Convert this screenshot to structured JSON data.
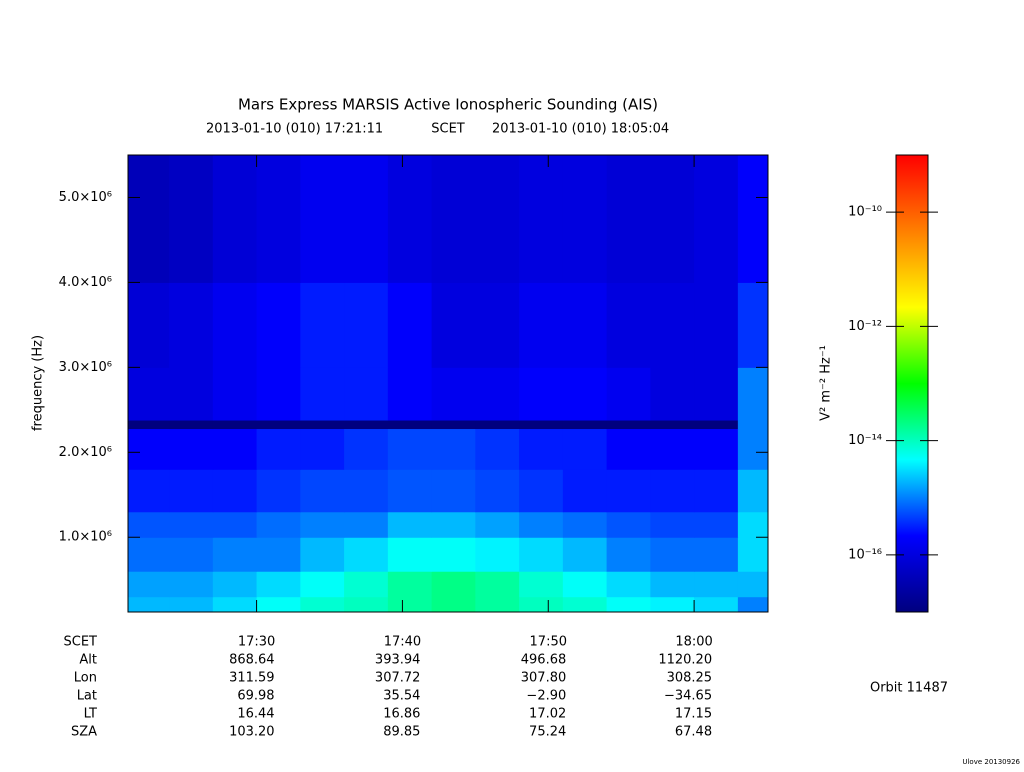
{
  "chart_data": {
    "type": "spectrogram",
    "title": "Mars Express MARSIS Active Ionospheric Sounding (AIS)",
    "start_time": "2013-01-10 (010) 17:21:11",
    "time_system": "SCET",
    "end_time": "2013-01-10 (010) 18:05:04",
    "y_label": "frequency (Hz)",
    "colorbar_label": "V² m⁻² Hz⁻¹",
    "orbit": "Orbit 11487",
    "footer": "Ulove 20130926",
    "xlim": [
      "17:21:11",
      "18:05:04"
    ],
    "xticks": [
      {
        "value": "17:30:00",
        "label": "17:30"
      },
      {
        "value": "17:40:00",
        "label": "17:40"
      },
      {
        "value": "17:50:00",
        "label": "17:50"
      },
      {
        "value": "18:00:00",
        "label": "18:00"
      }
    ],
    "ylim": [
      120000,
      5500000
    ],
    "yticks": [
      {
        "value": 1000000,
        "label": "1.0×10⁶"
      },
      {
        "value": 2000000,
        "label": "2.0×10⁶"
      },
      {
        "value": 3000000,
        "label": "3.0×10⁶"
      },
      {
        "value": 4000000,
        "label": "4.0×10⁶"
      },
      {
        "value": 5000000,
        "label": "5.0×10⁶"
      }
    ],
    "zlim": [
      1e-17,
      1e-09
    ],
    "zscale": "log",
    "zticks": [
      {
        "value": 1e-16,
        "label": "10⁻¹⁶"
      },
      {
        "value": 1e-14,
        "label": "10⁻¹⁴"
      },
      {
        "value": 1e-12,
        "label": "10⁻¹²"
      },
      {
        "value": 1e-10,
        "label": "10⁻¹⁰"
      }
    ],
    "colorscale": [
      "#00007f",
      "#0000ff",
      "#00ffff",
      "#00ff00",
      "#ffff00",
      "#ff7f00",
      "#ff0000"
    ],
    "time_bins": [
      "17:21:11",
      "17:24:00",
      "17:27:00",
      "17:30:00",
      "17:33:00",
      "17:36:00",
      "17:39:00",
      "17:42:00",
      "17:45:00",
      "17:48:00",
      "17:51:00",
      "17:54:00",
      "17:57:00",
      "18:00:00",
      "18:03:00",
      "18:05:04"
    ],
    "frequency_bins": [
      120000,
      300000,
      600000,
      1000000,
      1300000,
      1800000,
      2280000,
      2380000,
      3000000,
      4000000,
      5500000
    ],
    "z": [
      [
        2e-15,
        2e-15,
        3e-15,
        5e-15,
        8e-15,
        1e-14,
        1.5e-14,
        2e-14,
        1.5e-14,
        1e-14,
        8e-15,
        5e-15,
        4e-15,
        3e-15,
        1e-15
      ],
      [
        1.5e-15,
        1.5e-15,
        2e-15,
        3e-15,
        5e-15,
        8e-15,
        1.5e-14,
        2e-14,
        1.5e-14,
        8e-15,
        5e-15,
        3e-15,
        2e-15,
        2e-15,
        2e-15
      ],
      [
        8e-16,
        8e-16,
        1e-15,
        1e-15,
        2e-15,
        3e-15,
        5e-15,
        5e-15,
        4e-15,
        3e-15,
        2e-15,
        1e-15,
        8e-16,
        8e-16,
        3e-15
      ],
      [
        6e-16,
        6e-16,
        6e-16,
        8e-16,
        1e-15,
        1e-15,
        2e-15,
        2e-15,
        1.5e-15,
        1e-15,
        8e-16,
        6e-16,
        5e-16,
        5e-16,
        3e-15
      ],
      [
        3e-16,
        3e-16,
        3e-16,
        4e-16,
        5e-16,
        5e-16,
        6e-16,
        6e-16,
        5e-16,
        4e-16,
        3e-16,
        3e-16,
        3e-16,
        3e-16,
        2e-15
      ],
      [
        2e-16,
        2e-16,
        2e-16,
        3e-16,
        3e-16,
        4e-16,
        5e-16,
        5e-16,
        4e-16,
        3e-16,
        3e-16,
        2e-16,
        2e-16,
        2e-16,
        1e-15
      ],
      [
        1e-17,
        1e-17,
        1e-17,
        1e-17,
        1e-17,
        1e-17,
        1e-17,
        1e-17,
        1e-17,
        1e-17,
        1e-17,
        1e-17,
        1e-17,
        1e-17,
        1e-15
      ],
      [
        1e-16,
        1e-16,
        1.5e-16,
        2e-16,
        3e-16,
        3e-16,
        2e-16,
        1.5e-16,
        1.5e-16,
        2e-16,
        2e-16,
        1.5e-16,
        1e-16,
        1e-16,
        1e-15
      ],
      [
        8e-17,
        1e-16,
        1.5e-16,
        2e-16,
        3e-16,
        3e-16,
        2e-16,
        1e-16,
        1e-16,
        1.5e-16,
        1.5e-16,
        1e-16,
        1e-16,
        1e-16,
        4e-16
      ],
      [
        4e-17,
        5e-17,
        8e-17,
        1e-16,
        1.5e-16,
        1.5e-16,
        1e-16,
        8e-17,
        8e-17,
        1e-16,
        1e-16,
        8e-17,
        8e-17,
        1e-16,
        2e-16
      ]
    ],
    "x_row_label": "SCET",
    "ephemeris": [
      {
        "label": "Alt",
        "values": [
          "868.64",
          "393.94",
          "496.68",
          "1120.20"
        ]
      },
      {
        "label": "Lon",
        "values": [
          "311.59",
          "307.72",
          "307.80",
          "308.25"
        ]
      },
      {
        "label": "Lat",
        "values": [
          "69.98",
          "35.54",
          "−2.90",
          "−34.65"
        ]
      },
      {
        "label": "LT",
        "values": [
          "16.44",
          "16.86",
          "17.02",
          "17.15"
        ]
      },
      {
        "label": "SZA",
        "values": [
          "103.20",
          "89.85",
          "75.24",
          "67.48"
        ]
      }
    ]
  }
}
